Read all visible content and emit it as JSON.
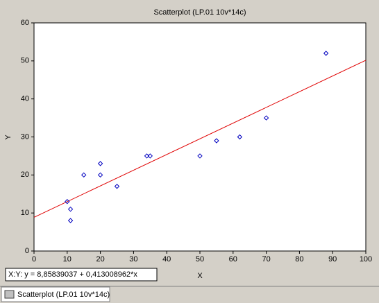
{
  "chart_data": {
    "type": "scatter",
    "title": "Scatterplot (LP.01 10v*14c)",
    "x_label": "X",
    "y_label": "Y",
    "x": [
      10,
      11,
      11,
      15,
      20,
      20,
      25,
      34,
      35,
      50,
      55,
      62,
      70,
      88
    ],
    "values": [
      13,
      11,
      8,
      20,
      23,
      20,
      17,
      25,
      25,
      25,
      29,
      30,
      35,
      52
    ],
    "color": "#0000c0",
    "xlim": [
      0,
      100
    ],
    "xticks": [
      0,
      10,
      20,
      30,
      40,
      50,
      60,
      70,
      80,
      90,
      100
    ],
    "ylim": [
      0,
      60
    ],
    "yticks": [
      0,
      10,
      20,
      30,
      40,
      50,
      60
    ],
    "grid": false,
    "regression": {
      "intercept": 8.85839037,
      "slope": 0.413008962,
      "color": "#e00000",
      "label": "X:Y:  y = 8,85839037 + 0,413008962*x"
    }
  },
  "tab": {
    "label": "Scatterplot (LP.01 10v*14c)"
  }
}
